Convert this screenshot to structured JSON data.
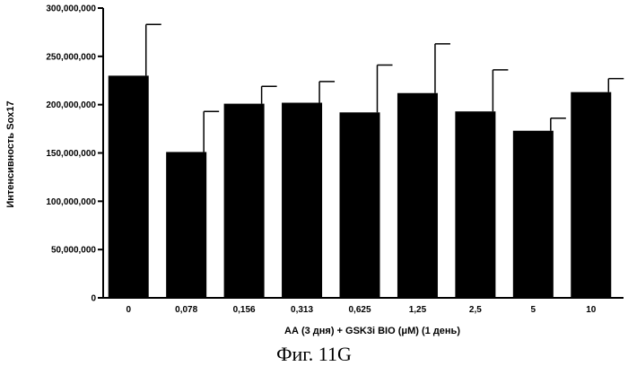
{
  "figure_caption": "Фиг. 11G",
  "chart_data": {
    "type": "bar",
    "ylabel": "Интенсивность Sox17",
    "xlabel": "АА (3 дня) + GSK3i BIO (μM) (1 день)",
    "categories": [
      "0",
      "0,078",
      "0,156",
      "0,313",
      "0,625",
      "1,25",
      "2,5",
      "5",
      "10"
    ],
    "values": [
      230000000,
      151000000,
      201000000,
      202000000,
      192000000,
      212000000,
      193000000,
      173000000,
      213000000
    ],
    "errors": [
      53000000,
      42000000,
      18000000,
      22000000,
      49000000,
      51000000,
      43000000,
      13000000,
      14000000
    ],
    "ylim": [
      0,
      300000000
    ],
    "yticks": [
      0,
      50000000,
      100000000,
      150000000,
      200000000,
      250000000,
      300000000
    ],
    "ytick_labels": [
      "0",
      "50,000,000",
      "100,000,000",
      "150,000,000",
      "200,000,000",
      "250,000,000",
      "300,000,000"
    ],
    "bar_color": "#000000",
    "grid": false,
    "legend": "none"
  }
}
